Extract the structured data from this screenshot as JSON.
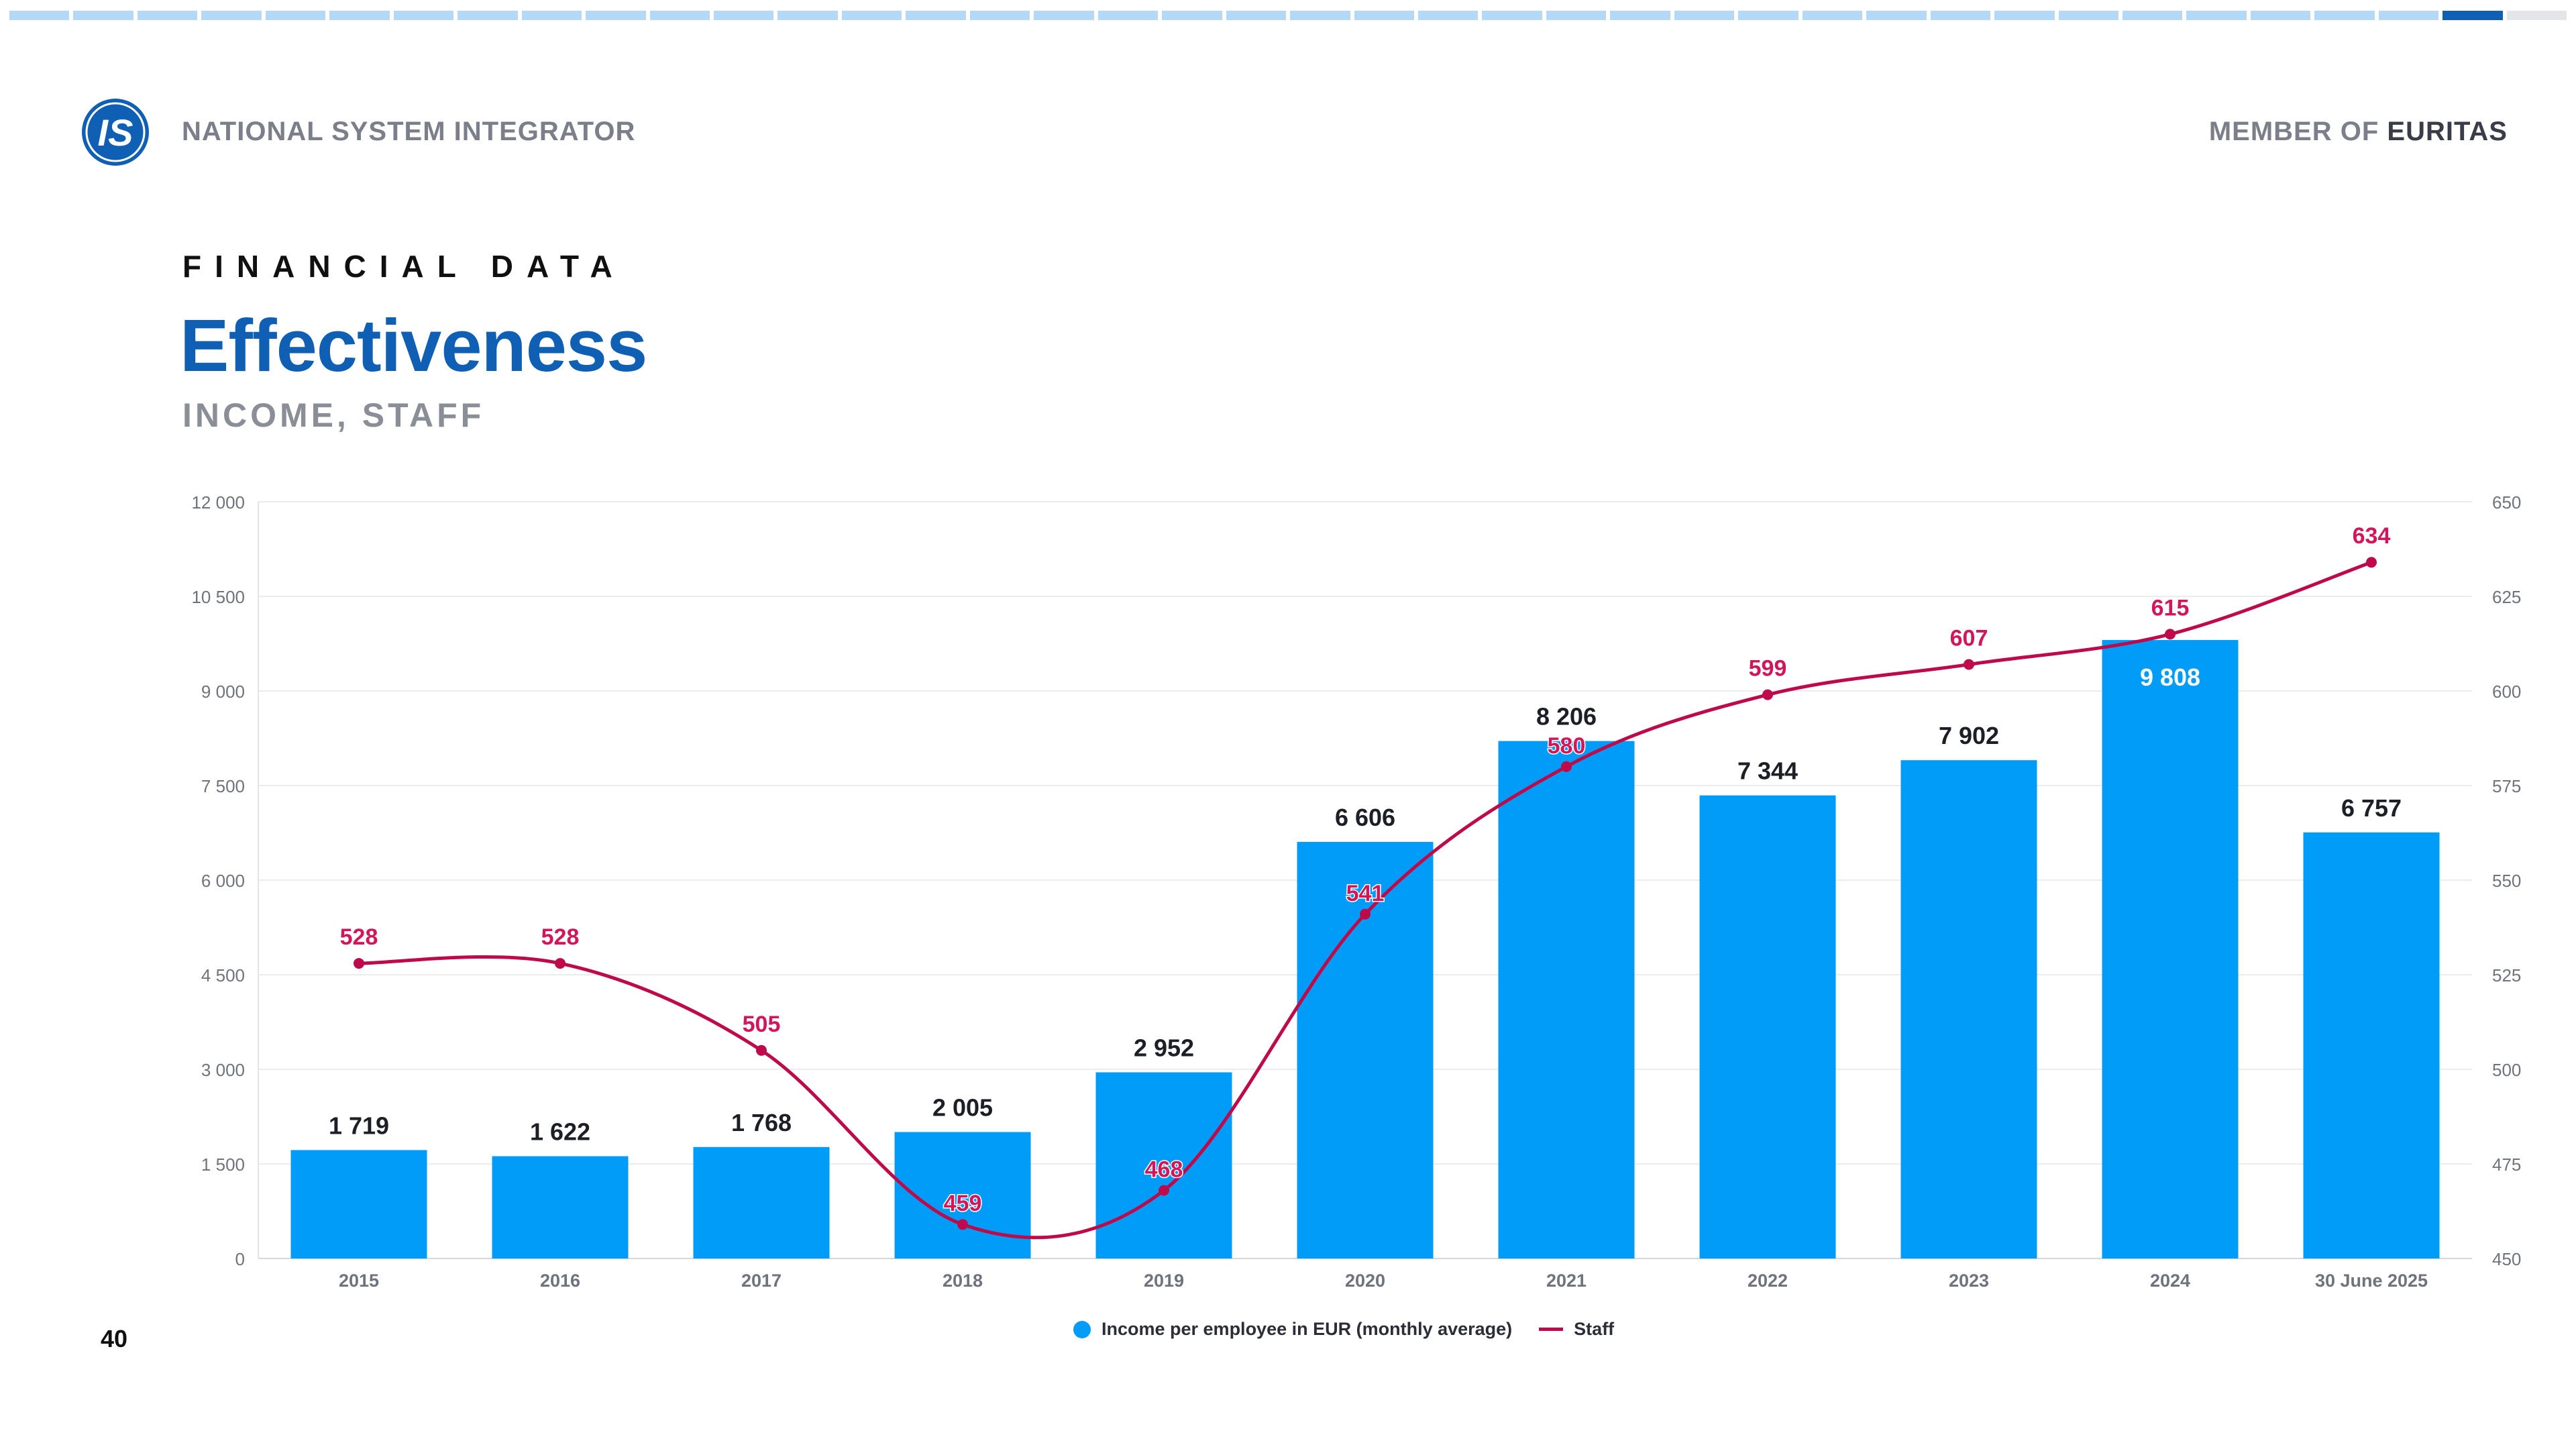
{
  "header": {
    "logo_text": "IS",
    "company": "NATIONAL SYSTEM INTEGRATOR",
    "member_prefix": "MEMBER OF",
    "member_name": "EURITAS"
  },
  "progress": {
    "total_segments": 39,
    "active_segment": 39
  },
  "slide": {
    "section": "FINANCIAL DATA",
    "title": "Effectiveness",
    "subtitle": "INCOME, STAFF",
    "page_number": "40"
  },
  "colors": {
    "brand_blue": "#0f5fb5",
    "bar_blue": "#009cf7",
    "staff_line": "#be0a4a",
    "staff_label": "#d1165b",
    "muted_gray": "#7b7f89"
  },
  "chart_data": {
    "type": "bar",
    "categories": [
      "2015",
      "2016",
      "2017",
      "2018",
      "2019",
      "2020",
      "2021",
      "2022",
      "2023",
      "2024",
      "30 June 2025"
    ],
    "series": [
      {
        "name": "Income per employee in EUR (monthly average)",
        "type": "bar",
        "axis": "left",
        "values": [
          1719,
          1622,
          1768,
          2005,
          2952,
          6606,
          8206,
          7344,
          7902,
          9808,
          6757
        ],
        "labels": [
          "1 719",
          "1 622",
          "1 768",
          "2 005",
          "2 952",
          "6 606",
          "8 206",
          "7 344",
          "7 902",
          "9 808",
          "6 757"
        ]
      },
      {
        "name": "Staff",
        "type": "line",
        "axis": "right",
        "values": [
          528,
          528,
          505,
          459,
          468,
          541,
          580,
          599,
          607,
          615,
          634
        ],
        "labels": [
          "528",
          "528",
          "505",
          "459",
          "468",
          "541",
          "580",
          "599",
          "607",
          "615",
          "634"
        ]
      }
    ],
    "y_left": {
      "min": 0,
      "max": 12000,
      "ticks": [
        "0",
        "1 500",
        "3 000",
        "4 500",
        "6 000",
        "7 500",
        "9 000",
        "10 500",
        "12 000"
      ]
    },
    "y_right": {
      "min": 450,
      "max": 650,
      "ticks": [
        "450",
        "475",
        "500",
        "525",
        "550",
        "575",
        "600",
        "625",
        "650"
      ]
    },
    "grid": true,
    "legend_position": "bottom-center"
  }
}
